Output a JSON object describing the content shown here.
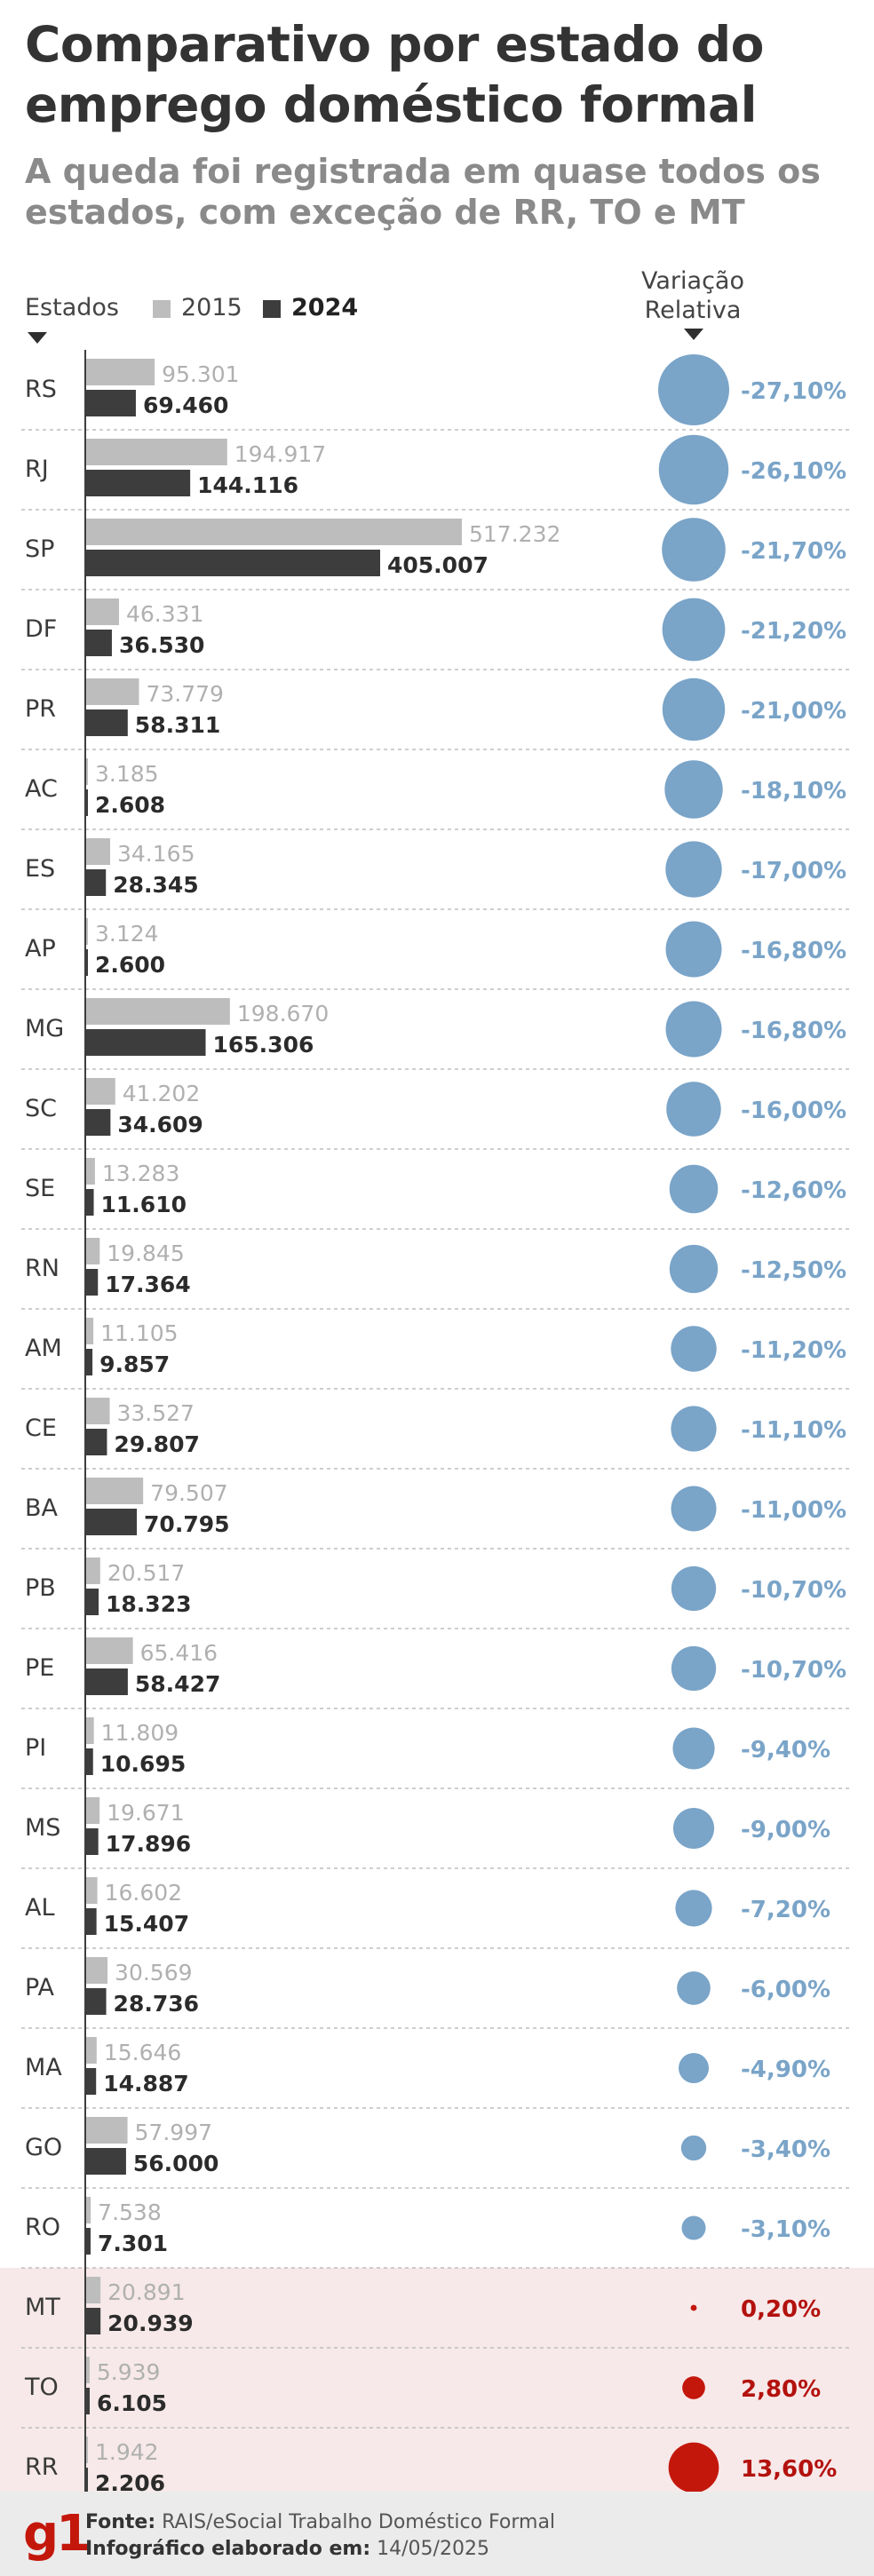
{
  "header": {
    "title": "Comparativo por estado do emprego doméstico formal",
    "subtitle": "A queda foi registrada em quase todos os estados, com exceção de RR, TO e MT"
  },
  "legend": {
    "states_label": "Estados",
    "series_2015": "2015",
    "series_2024": "2024",
    "variation_label": "Variação Relativa"
  },
  "colors": {
    "bar_2015": "#bdbdbd",
    "bar_2024": "#3d3d3d",
    "negative": "#7aa4c8",
    "positive": "#c4170c",
    "highlight_bg": "#f7e9e9",
    "positive_label": "#b3120e"
  },
  "chart_data": {
    "type": "bar",
    "title": "Comparativo por estado do emprego doméstico formal",
    "series": [
      {
        "name": "2015",
        "values": [
          95301,
          194917,
          517232,
          46331,
          73779,
          3185,
          34165,
          3124,
          198670,
          41202,
          13283,
          19845,
          11105,
          33527,
          79507,
          20517,
          65416,
          11809,
          19671,
          16602,
          30569,
          15646,
          57997,
          7538,
          20891,
          5939,
          1942
        ]
      },
      {
        "name": "2024",
        "values": [
          69460,
          144116,
          405007,
          36530,
          58311,
          2608,
          28345,
          2600,
          165306,
          34609,
          11610,
          17364,
          9857,
          29807,
          70795,
          18323,
          58427,
          10695,
          17896,
          15407,
          28736,
          14887,
          56000,
          7301,
          20939,
          6105,
          2206
        ]
      }
    ],
    "rows": [
      {
        "state": "RS",
        "v2015": "95.301",
        "v2024": "69.460",
        "variation": -27.1,
        "variation_label": "-27,10%"
      },
      {
        "state": "RJ",
        "v2015": "194.917",
        "v2024": "144.116",
        "variation": -26.1,
        "variation_label": "-26,10%"
      },
      {
        "state": "SP",
        "v2015": "517.232",
        "v2024": "405.007",
        "variation": -21.7,
        "variation_label": "-21,70%"
      },
      {
        "state": "DF",
        "v2015": "46.331",
        "v2024": "36.530",
        "variation": -21.2,
        "variation_label": "-21,20%"
      },
      {
        "state": "PR",
        "v2015": "73.779",
        "v2024": "58.311",
        "variation": -21.0,
        "variation_label": "-21,00%"
      },
      {
        "state": "AC",
        "v2015": "3.185",
        "v2024": "2.608",
        "variation": -18.1,
        "variation_label": "-18,10%"
      },
      {
        "state": "ES",
        "v2015": "34.165",
        "v2024": "28.345",
        "variation": -17.0,
        "variation_label": "-17,00%"
      },
      {
        "state": "AP",
        "v2015": "3.124",
        "v2024": "2.600",
        "variation": -16.8,
        "variation_label": "-16,80%"
      },
      {
        "state": "MG",
        "v2015": "198.670",
        "v2024": "165.306",
        "variation": -16.8,
        "variation_label": "-16,80%"
      },
      {
        "state": "SC",
        "v2015": "41.202",
        "v2024": "34.609",
        "variation": -16.0,
        "variation_label": "-16,00%"
      },
      {
        "state": "SE",
        "v2015": "13.283",
        "v2024": "11.610",
        "variation": -12.6,
        "variation_label": "-12,60%"
      },
      {
        "state": "RN",
        "v2015": "19.845",
        "v2024": "17.364",
        "variation": -12.5,
        "variation_label": "-12,50%"
      },
      {
        "state": "AM",
        "v2015": "11.105",
        "v2024": "9.857",
        "variation": -11.2,
        "variation_label": "-11,20%"
      },
      {
        "state": "CE",
        "v2015": "33.527",
        "v2024": "29.807",
        "variation": -11.1,
        "variation_label": "-11,10%"
      },
      {
        "state": "BA",
        "v2015": "79.507",
        "v2024": "70.795",
        "variation": -11.0,
        "variation_label": "-11,00%"
      },
      {
        "state": "PB",
        "v2015": "20.517",
        "v2024": "18.323",
        "variation": -10.7,
        "variation_label": "-10,70%"
      },
      {
        "state": "PE",
        "v2015": "65.416",
        "v2024": "58.427",
        "variation": -10.7,
        "variation_label": "-10,70%"
      },
      {
        "state": "PI",
        "v2015": "11.809",
        "v2024": "10.695",
        "variation": -9.4,
        "variation_label": "-9,40%"
      },
      {
        "state": "MS",
        "v2015": "19.671",
        "v2024": "17.896",
        "variation": -9.0,
        "variation_label": "-9,00%"
      },
      {
        "state": "AL",
        "v2015": "16.602",
        "v2024": "15.407",
        "variation": -7.2,
        "variation_label": "-7,20%"
      },
      {
        "state": "PA",
        "v2015": "30.569",
        "v2024": "28.736",
        "variation": -6.0,
        "variation_label": "-6,00%"
      },
      {
        "state": "MA",
        "v2015": "15.646",
        "v2024": "14.887",
        "variation": -4.9,
        "variation_label": "-4,90%"
      },
      {
        "state": "GO",
        "v2015": "57.997",
        "v2024": "56.000",
        "variation": -3.4,
        "variation_label": "-3,40%"
      },
      {
        "state": "RO",
        "v2015": "7.538",
        "v2024": "7.301",
        "variation": -3.1,
        "variation_label": "-3,10%"
      },
      {
        "state": "MT",
        "v2015": "20.891",
        "v2024": "20.939",
        "variation": 0.2,
        "variation_label": "0,20%"
      },
      {
        "state": "TO",
        "v2015": "5.939",
        "v2024": "6.105",
        "variation": 2.8,
        "variation_label": "2,80%"
      },
      {
        "state": "RR",
        "v2015": "1.942",
        "v2024": "2.206",
        "variation": 13.6,
        "variation_label": "13,60%"
      }
    ],
    "highlighted_states": [
      "MT",
      "TO",
      "RR"
    ]
  },
  "footer": {
    "logo": "g1",
    "source_label": "Fonte:",
    "source_value": "RAIS/eSocial Trabalho Doméstico Formal",
    "credit_label": "Infográfico elaborado em:",
    "credit_value": "14/05/2025"
  }
}
